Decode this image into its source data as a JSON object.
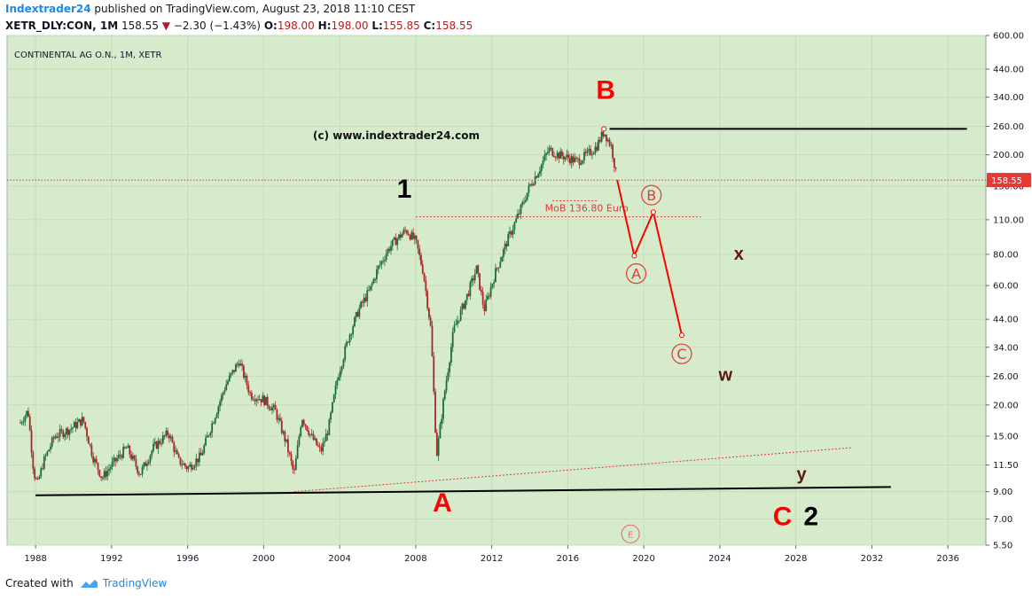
{
  "header": {
    "author": "Indextrader24",
    "published_text": "published on TradingView.com, August 23, 2018 11:10 CEST",
    "symbol": "XETR_DLY:CON, 1M",
    "last": "158.55",
    "change_arrow": "▼",
    "change": "−2.30 (−1.43%)",
    "o_label": "O:",
    "o_value": "198.00",
    "h_label": "H:",
    "h_value": "198.00",
    "l_label": "L:",
    "l_value": "155.85",
    "c_label": "C:",
    "c_value": "158.55"
  },
  "footer": {
    "created_with": "Created with",
    "brand": "TradingView",
    "brand_icon": "tradingview-cloud-icon"
  },
  "colors": {
    "background": "#d6ebcc",
    "up_candle": "#1e6b3a",
    "down_candle": "#a8282a",
    "price_line": "#e53935",
    "label_red": "#ff0000",
    "label_brown": "#5a1a0a",
    "black": "#000000"
  },
  "chart_data": {
    "type": "candlestick",
    "title": "CONTINENTAL AG O.N., 1M, XETR",
    "watermark": "(c) www.indextrader24.com",
    "y_scale": "log",
    "ylim": [
      5.5,
      600
    ],
    "xlim": [
      1986.5,
      2038.0
    ],
    "y_ticks": [
      "600.00",
      "440.00",
      "340.00",
      "260.00",
      "200.00",
      "150.00",
      "110.00",
      "80.00",
      "60.00",
      "44.00",
      "34.00",
      "26.00",
      "20.00",
      "15.00",
      "11.50",
      "9.00",
      "7.00",
      "5.50"
    ],
    "x_ticks": [
      "1988",
      "1992",
      "1996",
      "2000",
      "2004",
      "2008",
      "2012",
      "2016",
      "2020",
      "2024",
      "2028",
      "2032",
      "2036"
    ],
    "last_price": 158.55,
    "last_price_label": "158.55",
    "price_path": [
      [
        1987.2,
        17.0
      ],
      [
        1987.6,
        19.0
      ],
      [
        1987.9,
        10.8
      ],
      [
        1988.1,
        9.6
      ],
      [
        1988.4,
        11.8
      ],
      [
        1989.0,
        15.0
      ],
      [
        1989.8,
        16.0
      ],
      [
        1990.5,
        17.5
      ],
      [
        1991.0,
        12.5
      ],
      [
        1991.5,
        10.2
      ],
      [
        1992.0,
        11.5
      ],
      [
        1992.8,
        13.5
      ],
      [
        1993.5,
        10.6
      ],
      [
        1994.2,
        13.5
      ],
      [
        1995.0,
        15.5
      ],
      [
        1995.5,
        12.0
      ],
      [
        1996.0,
        11.2
      ],
      [
        1996.7,
        12.5
      ],
      [
        1997.3,
        17.0
      ],
      [
        1998.0,
        24.0
      ],
      [
        1998.7,
        30.0
      ],
      [
        1999.3,
        22.0
      ],
      [
        2000.0,
        21.0
      ],
      [
        2000.6,
        19.0
      ],
      [
        2001.2,
        14.0
      ],
      [
        2001.6,
        10.5
      ],
      [
        2002.0,
        18.0
      ],
      [
        2002.5,
        15.0
      ],
      [
        2003.0,
        13.0
      ],
      [
        2003.4,
        16.0
      ],
      [
        2003.9,
        26.0
      ],
      [
        2004.5,
        38.0
      ],
      [
        2005.0,
        48.0
      ],
      [
        2005.6,
        58.0
      ],
      [
        2006.0,
        70.0
      ],
      [
        2006.6,
        85.0
      ],
      [
        2007.0,
        92.0
      ],
      [
        2007.5,
        100.0
      ],
      [
        2008.0,
        90.0
      ],
      [
        2008.4,
        68.0
      ],
      [
        2008.8,
        40.0
      ],
      [
        2009.1,
        12.5
      ],
      [
        2009.5,
        22.0
      ],
      [
        2010.0,
        40.0
      ],
      [
        2010.6,
        52.0
      ],
      [
        2011.2,
        70.0
      ],
      [
        2011.6,
        48.0
      ],
      [
        2012.2,
        68.0
      ],
      [
        2012.8,
        90.0
      ],
      [
        2013.5,
        120.0
      ],
      [
        2014.0,
        150.0
      ],
      [
        2014.5,
        175.0
      ],
      [
        2015.0,
        210.0
      ],
      [
        2015.5,
        200.0
      ],
      [
        2016.0,
        195.0
      ],
      [
        2016.5,
        188.0
      ],
      [
        2017.0,
        200.0
      ],
      [
        2017.5,
        215.0
      ],
      [
        2017.9,
        248.0
      ],
      [
        2018.3,
        215.0
      ],
      [
        2018.6,
        158.55
      ]
    ],
    "trendlines": [
      {
        "name": "support-line",
        "color": "#000000",
        "style": "solid",
        "points": [
          [
            1988.0,
            8.7
          ],
          [
            2033.0,
            9.4
          ]
        ]
      },
      {
        "name": "resistance-line",
        "color": "#000000",
        "style": "solid",
        "points": [
          [
            2018.2,
            254.0
          ],
          [
            2037.0,
            254.0
          ]
        ]
      },
      {
        "name": "dotted-trendline",
        "color": "#e53935",
        "style": "dotted",
        "points": [
          [
            2001.6,
            9.0
          ],
          [
            2031.0,
            13.5
          ]
        ]
      },
      {
        "name": "mob-line",
        "color": "#e53935",
        "style": "dotted",
        "points": [
          [
            2008.0,
            113.0
          ],
          [
            2023.0,
            113.0
          ]
        ]
      },
      {
        "name": "mob-small-line",
        "color": "#e53935",
        "style": "dotted",
        "points": [
          [
            2015.2,
            131.0
          ],
          [
            2017.6,
            131.0
          ]
        ]
      }
    ],
    "projection": [
      [
        2018.6,
        158.55
      ],
      [
        2019.5,
        79.0
      ],
      [
        2020.5,
        118.0
      ],
      [
        2022.0,
        38.0
      ]
    ],
    "mob_label": "MoB 136.80 Euro",
    "wave_labels": [
      {
        "text": "1",
        "style": "black",
        "x": 2007.4,
        "y": 135.0
      },
      {
        "text": "A",
        "style": "red",
        "x": 2009.4,
        "y": 7.5
      },
      {
        "text": "B",
        "style": "red",
        "x": 2018.0,
        "y": 335.0
      },
      {
        "text": "x",
        "style": "brown",
        "x": 2025.0,
        "y": 76.0
      },
      {
        "text": "w",
        "style": "brown",
        "x": 2024.3,
        "y": 25.0
      },
      {
        "text": "y",
        "style": "brown",
        "x": 2028.3,
        "y": 10.0
      },
      {
        "text": "C",
        "style": "red",
        "x": 2027.3,
        "y": 6.6
      },
      {
        "text": "2",
        "style": "black",
        "x": 2028.8,
        "y": 6.6
      }
    ],
    "circled_labels": [
      {
        "text": "A",
        "x": 2019.6,
        "y": 67.0
      },
      {
        "text": "B",
        "x": 2020.4,
        "y": 138.0
      },
      {
        "text": "C",
        "x": 2022.0,
        "y": 32.0
      },
      {
        "text": "E",
        "x": 2019.3,
        "y": 6.1,
        "small": true
      }
    ]
  }
}
